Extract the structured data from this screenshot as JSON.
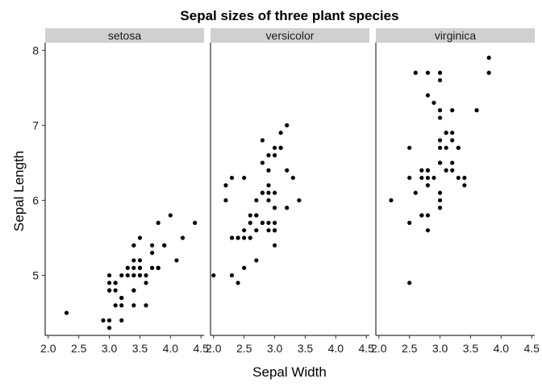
{
  "chart_data": {
    "type": "scatter",
    "title": "Sepal sizes of three plant species",
    "xlabel": "Sepal Width",
    "ylabel": "Sepal Length",
    "xlim": [
      1.95,
      4.55
    ],
    "ylim": [
      4.2,
      8.1
    ],
    "x_ticks": [
      2.0,
      2.5,
      3.0,
      3.5,
      4.0,
      4.5
    ],
    "x_tick_labels": [
      "2.0",
      "2.5",
      "3.0",
      "3.5",
      "4.0",
      "4.5"
    ],
    "y_ticks": [
      5,
      6,
      7,
      8
    ],
    "y_tick_labels": [
      "5",
      "6",
      "7",
      "8"
    ],
    "grid": false,
    "facets": [
      {
        "label": "setosa",
        "points": [
          [
            3.5,
            5.1
          ],
          [
            3.0,
            4.9
          ],
          [
            3.2,
            4.7
          ],
          [
            3.1,
            4.6
          ],
          [
            3.6,
            5.0
          ],
          [
            3.9,
            5.4
          ],
          [
            3.4,
            4.6
          ],
          [
            3.4,
            5.0
          ],
          [
            2.9,
            4.4
          ],
          [
            3.1,
            4.9
          ],
          [
            3.7,
            5.4
          ],
          [
            3.4,
            4.8
          ],
          [
            3.0,
            4.8
          ],
          [
            3.0,
            4.3
          ],
          [
            4.0,
            5.8
          ],
          [
            4.4,
            5.7
          ],
          [
            3.9,
            5.4
          ],
          [
            3.5,
            5.1
          ],
          [
            3.8,
            5.7
          ],
          [
            3.8,
            5.1
          ],
          [
            3.4,
            5.4
          ],
          [
            3.7,
            5.1
          ],
          [
            3.6,
            4.6
          ],
          [
            3.3,
            5.1
          ],
          [
            3.4,
            4.8
          ],
          [
            3.0,
            5.0
          ],
          [
            3.4,
            5.0
          ],
          [
            3.5,
            5.2
          ],
          [
            3.4,
            5.2
          ],
          [
            3.2,
            4.7
          ],
          [
            3.1,
            4.8
          ],
          [
            3.4,
            5.4
          ],
          [
            4.1,
            5.2
          ],
          [
            4.2,
            5.5
          ],
          [
            3.1,
            4.9
          ],
          [
            3.2,
            5.0
          ],
          [
            3.5,
            5.5
          ],
          [
            3.6,
            4.9
          ],
          [
            3.0,
            4.4
          ],
          [
            3.4,
            5.1
          ],
          [
            3.5,
            5.0
          ],
          [
            2.3,
            4.5
          ],
          [
            3.2,
            4.4
          ],
          [
            3.5,
            5.0
          ],
          [
            3.8,
            5.1
          ],
          [
            3.0,
            4.8
          ],
          [
            3.8,
            5.1
          ],
          [
            3.2,
            4.6
          ],
          [
            3.7,
            5.3
          ],
          [
            3.3,
            5.0
          ]
        ]
      },
      {
        "label": "versicolor",
        "points": [
          [
            3.2,
            7.0
          ],
          [
            3.2,
            6.4
          ],
          [
            3.1,
            6.9
          ],
          [
            2.3,
            5.5
          ],
          [
            2.8,
            6.5
          ],
          [
            2.8,
            5.7
          ],
          [
            3.3,
            6.3
          ],
          [
            2.4,
            4.9
          ],
          [
            2.9,
            6.6
          ],
          [
            2.7,
            5.2
          ],
          [
            2.0,
            5.0
          ],
          [
            3.0,
            5.9
          ],
          [
            2.2,
            6.0
          ],
          [
            2.9,
            6.1
          ],
          [
            2.9,
            5.6
          ],
          [
            3.1,
            6.7
          ],
          [
            3.0,
            5.6
          ],
          [
            2.7,
            5.8
          ],
          [
            2.2,
            6.2
          ],
          [
            2.5,
            5.6
          ],
          [
            3.2,
            5.9
          ],
          [
            2.8,
            6.1
          ],
          [
            2.5,
            6.3
          ],
          [
            2.8,
            6.1
          ],
          [
            2.9,
            6.4
          ],
          [
            3.0,
            6.6
          ],
          [
            2.8,
            6.8
          ],
          [
            3.0,
            6.7
          ],
          [
            2.9,
            6.0
          ],
          [
            2.6,
            5.7
          ],
          [
            2.4,
            5.5
          ],
          [
            2.4,
            5.5
          ],
          [
            2.7,
            5.8
          ],
          [
            2.7,
            6.0
          ],
          [
            3.0,
            5.4
          ],
          [
            3.4,
            6.0
          ],
          [
            3.1,
            6.7
          ],
          [
            2.3,
            6.3
          ],
          [
            3.0,
            5.6
          ],
          [
            2.5,
            5.5
          ],
          [
            2.6,
            5.5
          ],
          [
            3.0,
            6.1
          ],
          [
            2.6,
            5.8
          ],
          [
            2.3,
            5.0
          ],
          [
            2.7,
            5.6
          ],
          [
            3.0,
            5.7
          ],
          [
            2.9,
            5.7
          ],
          [
            2.9,
            6.2
          ],
          [
            2.5,
            5.1
          ],
          [
            2.8,
            5.7
          ]
        ]
      },
      {
        "label": "virginica",
        "points": [
          [
            3.3,
            6.3
          ],
          [
            2.7,
            5.8
          ],
          [
            3.0,
            7.1
          ],
          [
            2.9,
            6.3
          ],
          [
            3.0,
            6.5
          ],
          [
            3.0,
            7.6
          ],
          [
            2.5,
            4.9
          ],
          [
            2.9,
            7.3
          ],
          [
            2.5,
            6.7
          ],
          [
            3.6,
            7.2
          ],
          [
            3.2,
            6.5
          ],
          [
            2.7,
            6.4
          ],
          [
            3.0,
            6.8
          ],
          [
            2.5,
            5.7
          ],
          [
            2.8,
            5.8
          ],
          [
            3.2,
            6.4
          ],
          [
            3.0,
            6.5
          ],
          [
            3.8,
            7.7
          ],
          [
            2.6,
            7.7
          ],
          [
            2.2,
            6.0
          ],
          [
            3.2,
            6.9
          ],
          [
            2.8,
            5.6
          ],
          [
            2.8,
            7.7
          ],
          [
            2.7,
            6.3
          ],
          [
            3.3,
            6.7
          ],
          [
            3.2,
            7.2
          ],
          [
            2.8,
            6.2
          ],
          [
            3.0,
            6.1
          ],
          [
            2.8,
            6.4
          ],
          [
            3.0,
            7.2
          ],
          [
            2.8,
            7.4
          ],
          [
            3.8,
            7.9
          ],
          [
            2.8,
            6.4
          ],
          [
            2.8,
            6.3
          ],
          [
            2.6,
            6.1
          ],
          [
            3.0,
            7.7
          ],
          [
            3.4,
            6.3
          ],
          [
            3.1,
            6.4
          ],
          [
            3.0,
            6.0
          ],
          [
            3.1,
            6.9
          ],
          [
            3.1,
            6.7
          ],
          [
            3.1,
            6.9
          ],
          [
            2.7,
            5.8
          ],
          [
            3.2,
            6.8
          ],
          [
            3.3,
            6.7
          ],
          [
            3.0,
            6.7
          ],
          [
            2.5,
            6.3
          ],
          [
            3.0,
            6.5
          ],
          [
            3.4,
            6.2
          ],
          [
            3.0,
            5.9
          ]
        ]
      }
    ]
  }
}
